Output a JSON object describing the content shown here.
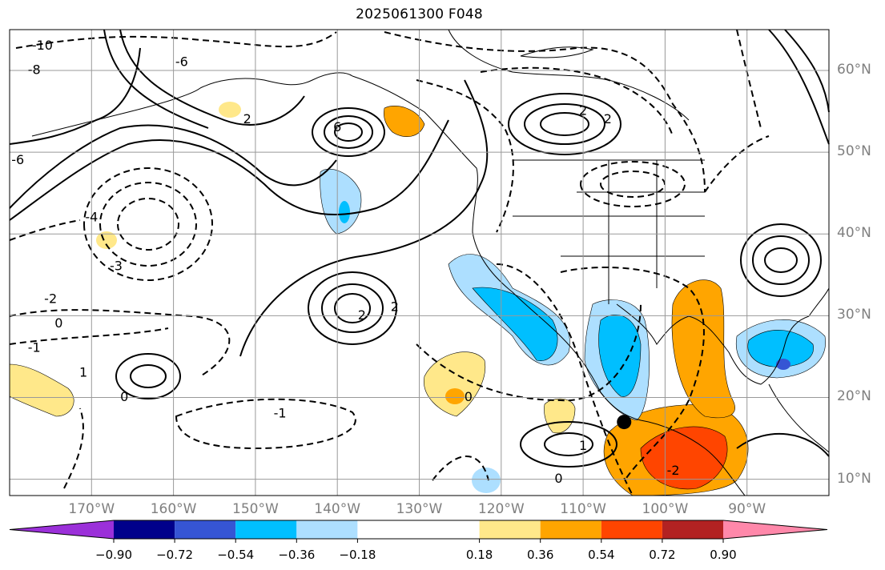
{
  "title": "2025061300 F048",
  "map": {
    "projection": "lat-lon",
    "extent": {
      "lon_min": -180,
      "lon_max": -80,
      "lat_min": 8,
      "lat_max": 65
    },
    "lat_ticks": [
      {
        "value": 60,
        "label": "60°N"
      },
      {
        "value": 50,
        "label": "50°N"
      },
      {
        "value": 40,
        "label": "40°N"
      },
      {
        "value": 30,
        "label": "30°N"
      },
      {
        "value": 20,
        "label": "20°N"
      },
      {
        "value": 10,
        "label": "10°N"
      }
    ],
    "lon_ticks": [
      {
        "value": -170,
        "label": "170°W"
      },
      {
        "value": -160,
        "label": "160°W"
      },
      {
        "value": -150,
        "label": "150°W"
      },
      {
        "value": -140,
        "label": "140°W"
      },
      {
        "value": -130,
        "label": "130°W"
      },
      {
        "value": -120,
        "label": "120°W"
      },
      {
        "value": -110,
        "label": "110°W"
      },
      {
        "value": -100,
        "label": "100°W"
      },
      {
        "value": -90,
        "label": "90°W"
      }
    ],
    "gridlines": true,
    "marker": {
      "lon": -105,
      "lat": 17,
      "color": "#000000"
    },
    "contour_labels": [
      {
        "text": "6",
        "lon": -140,
        "lat": 53
      },
      {
        "text": "2",
        "lon": -151,
        "lat": 54
      },
      {
        "text": "2",
        "lon": -137,
        "lat": 30
      },
      {
        "text": "2",
        "lon": -133,
        "lat": 31
      },
      {
        "text": "2",
        "lon": -107,
        "lat": 54
      },
      {
        "text": "2",
        "lon": -110,
        "lat": 55
      },
      {
        "text": "1",
        "lon": -171,
        "lat": 23
      },
      {
        "text": "1",
        "lon": -110,
        "lat": 14
      },
      {
        "text": "0",
        "lon": -174,
        "lat": 29
      },
      {
        "text": "0",
        "lon": -166,
        "lat": 20
      },
      {
        "text": "0",
        "lon": -124,
        "lat": 20
      },
      {
        "text": "0",
        "lon": -113,
        "lat": 10
      },
      {
        "text": "-1",
        "lon": -177,
        "lat": 26
      },
      {
        "text": "-1",
        "lon": -147,
        "lat": 18
      },
      {
        "text": "-2",
        "lon": -175,
        "lat": 32
      },
      {
        "text": "-2",
        "lon": -99,
        "lat": 11
      },
      {
        "text": "-3",
        "lon": -167,
        "lat": 36
      },
      {
        "text": "-4",
        "lon": -170,
        "lat": 42
      },
      {
        "text": "-6",
        "lon": -159,
        "lat": 61
      },
      {
        "text": "-6",
        "lon": -179,
        "lat": 49
      },
      {
        "text": "-8",
        "lon": -177,
        "lat": 60
      },
      {
        "text": "-10",
        "lon": -176,
        "lat": 63
      }
    ]
  },
  "colorbar": {
    "colors": [
      "#9b30d9",
      "#00008b",
      "#3655d4",
      "#00bfff",
      "#addfff",
      "#ffffff",
      "#ffe88a",
      "#ffa500",
      "#ff4500",
      "#b22222",
      "#ff88aa"
    ],
    "ticks": [
      "-0.90",
      "-0.72",
      "-0.54",
      "-0.36",
      "-0.18",
      "0.18",
      "0.36",
      "0.54",
      "0.72",
      "0.90"
    ],
    "extend": "both"
  }
}
